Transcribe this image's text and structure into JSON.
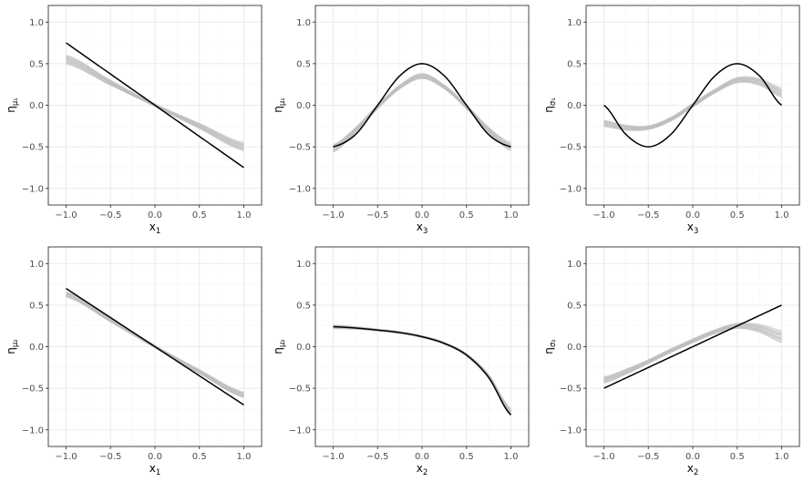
{
  "chart_data": [
    {
      "type": "line",
      "row": 0,
      "col": 0,
      "ylabel_main": "η",
      "ylabel_sub": "μ₁",
      "xlabel_main": "x",
      "xlabel_sub": "1",
      "xlim": [
        -1,
        1
      ],
      "ylim": [
        -1,
        1
      ],
      "xticks": [
        -1.0,
        -0.5,
        0.0,
        0.5,
        1.0
      ],
      "xtick_labels": [
        "−1.0",
        "−0.5",
        "0.0",
        "0.5",
        "1.0"
      ],
      "yticks": [
        -1.0,
        -0.5,
        0.0,
        0.5,
        1.0
      ],
      "ytick_labels": [
        "−1.0",
        "−0.5",
        "0.0",
        "0.5",
        "1.0"
      ],
      "grid": true,
      "true_function": {
        "x": [
          -1.0,
          1.0
        ],
        "y": [
          0.75,
          -0.75
        ]
      },
      "estimate_band": {
        "x": [
          -1.0,
          -0.5,
          0.0,
          0.5,
          1.0
        ],
        "center": [
          0.55,
          0.27,
          0.0,
          -0.25,
          -0.5
        ],
        "spread": [
          0.07,
          0.04,
          0.02,
          0.04,
          0.06
        ]
      }
    },
    {
      "type": "line",
      "row": 0,
      "col": 1,
      "ylabel_main": "η",
      "ylabel_sub": "μ₁",
      "xlabel_main": "x",
      "xlabel_sub": "3",
      "xlim": [
        -1,
        1
      ],
      "ylim": [
        -1,
        1
      ],
      "xticks": [
        -1.0,
        -0.5,
        0.0,
        0.5,
        1.0
      ],
      "xtick_labels": [
        "−1.0",
        "−0.5",
        "0.0",
        "0.5",
        "1.0"
      ],
      "yticks": [
        -1.0,
        -0.5,
        0.0,
        0.5,
        1.0
      ],
      "ytick_labels": [
        "−1.0",
        "−0.5",
        "0.0",
        "0.5",
        "1.0"
      ],
      "grid": true,
      "true_function": {
        "x": [
          -1.0,
          -0.75,
          -0.5,
          -0.25,
          0.0,
          0.25,
          0.5,
          0.75,
          1.0
        ],
        "y": [
          -0.5,
          -0.354,
          0.0,
          0.354,
          0.5,
          0.354,
          0.0,
          -0.354,
          -0.5
        ]
      },
      "estimate_band": {
        "x": [
          -1.0,
          -0.75,
          -0.5,
          -0.25,
          0.0,
          0.25,
          0.5,
          0.75,
          1.0
        ],
        "center": [
          -0.52,
          -0.3,
          -0.02,
          0.22,
          0.35,
          0.22,
          -0.02,
          -0.3,
          -0.5
        ],
        "spread": [
          0.06,
          0.04,
          0.03,
          0.03,
          0.04,
          0.03,
          0.03,
          0.04,
          0.06
        ]
      }
    },
    {
      "type": "line",
      "row": 0,
      "col": 2,
      "ylabel_main": "η",
      "ylabel_sub": "σ₁",
      "xlabel_main": "x",
      "xlabel_sub": "3",
      "xlim": [
        -1,
        1
      ],
      "ylim": [
        -1,
        1
      ],
      "xticks": [
        -1.0,
        -0.5,
        0.0,
        0.5,
        1.0
      ],
      "xtick_labels": [
        "−1.0",
        "−0.5",
        "0.0",
        "0.5",
        "1.0"
      ],
      "yticks": [
        -1.0,
        -0.5,
        0.0,
        0.5,
        1.0
      ],
      "ytick_labels": [
        "−1.0",
        "−0.5",
        "0.0",
        "0.5",
        "1.0"
      ],
      "grid": true,
      "true_function": {
        "x": [
          -1.0,
          -0.75,
          -0.5,
          -0.25,
          0.0,
          0.25,
          0.5,
          0.75,
          1.0
        ],
        "y": [
          0.0,
          -0.354,
          -0.5,
          -0.354,
          0.0,
          0.354,
          0.5,
          0.354,
          0.0
        ]
      },
      "estimate_band": {
        "x": [
          -1.0,
          -0.75,
          -0.5,
          -0.25,
          0.0,
          0.25,
          0.5,
          0.75,
          1.0
        ],
        "center": [
          -0.22,
          -0.27,
          -0.27,
          -0.17,
          0.0,
          0.17,
          0.3,
          0.28,
          0.15
        ],
        "spread": [
          0.05,
          0.04,
          0.03,
          0.03,
          0.03,
          0.03,
          0.04,
          0.05,
          0.07
        ]
      }
    },
    {
      "type": "line",
      "row": 1,
      "col": 0,
      "ylabel_main": "η",
      "ylabel_sub": "μ₂",
      "xlabel_main": "x",
      "xlabel_sub": "1",
      "xlim": [
        -1,
        1
      ],
      "ylim": [
        -1,
        1
      ],
      "xticks": [
        -1.0,
        -0.5,
        0.0,
        0.5,
        1.0
      ],
      "xtick_labels": [
        "−1.0",
        "−0.5",
        "0.0",
        "0.5",
        "1.0"
      ],
      "yticks": [
        -1.0,
        -0.5,
        0.0,
        0.5,
        1.0
      ],
      "ytick_labels": [
        "−1.0",
        "−0.5",
        "0.0",
        "0.5",
        "1.0"
      ],
      "grid": true,
      "true_function": {
        "x": [
          -1.0,
          1.0
        ],
        "y": [
          0.7,
          -0.7
        ]
      },
      "estimate_band": {
        "x": [
          -1.0,
          -0.5,
          0.0,
          0.5,
          1.0
        ],
        "center": [
          0.63,
          0.32,
          0.0,
          -0.3,
          -0.58
        ],
        "spread": [
          0.04,
          0.03,
          0.02,
          0.03,
          0.04
        ]
      }
    },
    {
      "type": "line",
      "row": 1,
      "col": 1,
      "ylabel_main": "η",
      "ylabel_sub": "μ₂",
      "xlabel_main": "x",
      "xlabel_sub": "2",
      "xlim": [
        -1,
        1
      ],
      "ylim": [
        -1,
        1
      ],
      "xticks": [
        -1.0,
        -0.5,
        0.0,
        0.5,
        1.0
      ],
      "xtick_labels": [
        "−1.0",
        "−0.5",
        "0.0",
        "0.5",
        "1.0"
      ],
      "yticks": [
        -1.0,
        -0.5,
        0.0,
        0.5,
        1.0
      ],
      "ytick_labels": [
        "−1.0",
        "−0.5",
        "0.0",
        "0.5",
        "1.0"
      ],
      "grid": true,
      "true_function": {
        "x": [
          -1.0,
          -0.75,
          -0.5,
          -0.25,
          0.0,
          0.25,
          0.5,
          0.75,
          1.0
        ],
        "y": [
          0.24,
          0.225,
          0.2,
          0.17,
          0.12,
          0.04,
          -0.1,
          -0.37,
          -0.82
        ]
      },
      "estimate_band": {
        "x": [
          -1.0,
          -0.75,
          -0.5,
          -0.25,
          0.0,
          0.25,
          0.5,
          0.75,
          1.0
        ],
        "center": [
          0.24,
          0.225,
          0.2,
          0.17,
          0.12,
          0.04,
          -0.1,
          -0.36,
          -0.79
        ],
        "spread": [
          0.03,
          0.02,
          0.015,
          0.015,
          0.015,
          0.015,
          0.02,
          0.03,
          0.05
        ]
      }
    },
    {
      "type": "line",
      "row": 1,
      "col": 2,
      "ylabel_main": "η",
      "ylabel_sub": "σ₂",
      "xlabel_main": "x",
      "xlabel_sub": "2",
      "xlim": [
        -1,
        1
      ],
      "ylim": [
        -1,
        1
      ],
      "xticks": [
        -1.0,
        -0.5,
        0.0,
        0.5,
        1.0
      ],
      "xtick_labels": [
        "−1.0",
        "−0.5",
        "0.0",
        "0.5",
        "1.0"
      ],
      "yticks": [
        -1.0,
        -0.5,
        0.0,
        0.5,
        1.0
      ],
      "ytick_labels": [
        "−1.0",
        "−0.5",
        "0.0",
        "0.5",
        "1.0"
      ],
      "grid": true,
      "true_function": {
        "x": [
          -1.0,
          1.0
        ],
        "y": [
          -0.5,
          0.5
        ]
      },
      "estimate_band": {
        "x": [
          -1.0,
          -0.75,
          -0.5,
          -0.25,
          0.0,
          0.25,
          0.5,
          0.75,
          1.0
        ],
        "center": [
          -0.4,
          -0.3,
          -0.18,
          -0.05,
          0.07,
          0.18,
          0.25,
          0.22,
          0.12
        ],
        "spread": [
          0.05,
          0.04,
          0.03,
          0.03,
          0.03,
          0.03,
          0.04,
          0.06,
          0.09
        ]
      }
    }
  ],
  "style": {
    "true_line_color": "#000000",
    "estimate_color": "#bdbdbd",
    "grid_major_color": "#ebebeb",
    "grid_minor_color": "#f5f5f5",
    "frame_color": "#333333",
    "text_color": "#4d4d4d",
    "estimate_line_count": 15
  }
}
